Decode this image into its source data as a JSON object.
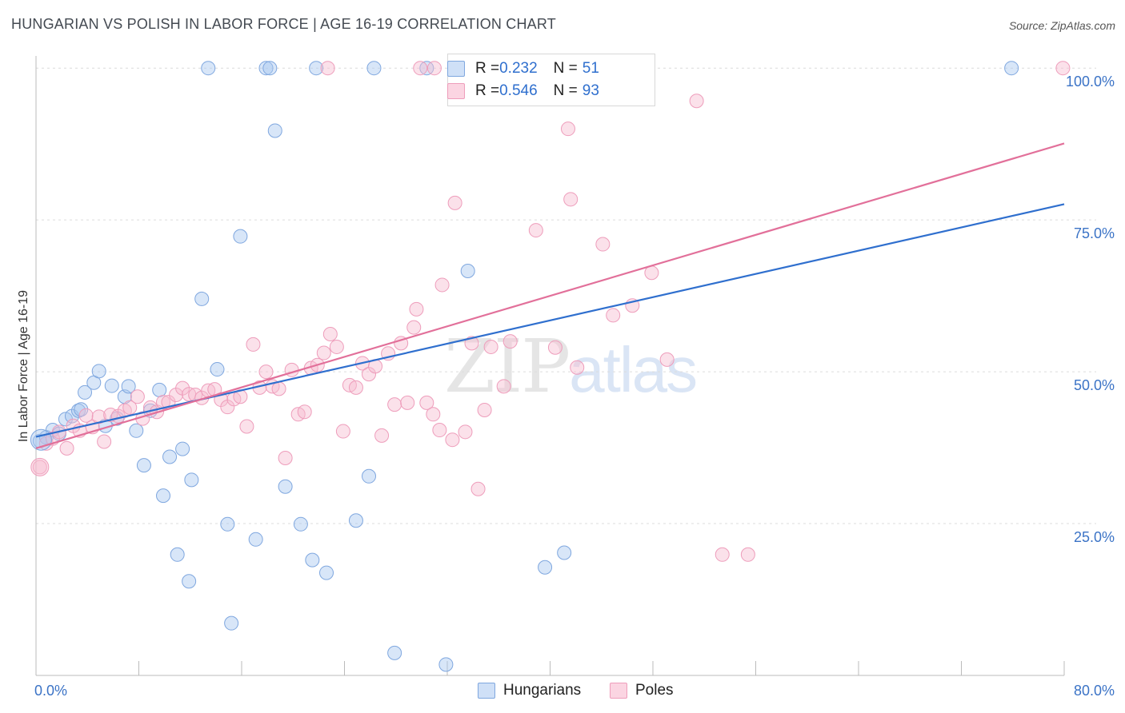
{
  "title": "HUNGARIAN VS POLISH IN LABOR FORCE | AGE 16-19 CORRELATION CHART",
  "source": "Source: ZipAtlas.com",
  "watermark": {
    "zip": "ZIP",
    "atlas": "atlas"
  },
  "legend": {
    "rows": [
      {
        "r_label": "R = ",
        "r_value": "0.232",
        "n_label": "N = ",
        "n_value": "51",
        "color": "#a9c7f0"
      },
      {
        "r_label": "R = ",
        "r_value": "0.546",
        "n_label": "N = ",
        "n_value": "93",
        "color": "#f7bcd0"
      }
    ]
  },
  "bottom_legend": [
    "Hungarians",
    "Poles"
  ],
  "chart_data": {
    "type": "scatter",
    "title": "HUNGARIAN VS POLISH IN LABOR FORCE | AGE 16-19 CORRELATION CHART",
    "xlabel": "",
    "ylabel": "In Labor Force | Age 16-19",
    "xlim": [
      0,
      80
    ],
    "ylim": [
      0,
      102
    ],
    "x_tick_labels": [
      "0.0%",
      "80.0%"
    ],
    "y_ticks": [
      25,
      50,
      75,
      100
    ],
    "y_tick_labels": [
      "25.0%",
      "50.0%",
      "75.0%",
      "100.0%"
    ],
    "grid": true,
    "colors": {
      "hungarians": "#a9c7f0",
      "hungarians_line": "#2f6fce",
      "poles": "#f7bcd0",
      "poles_line": "#e2709a"
    },
    "series": [
      {
        "name": "Hungarians",
        "trend": [
          [
            0,
            39.3
          ],
          [
            80,
            77.6
          ]
        ],
        "points": [
          [
            0.3,
            38.6
          ],
          [
            0.8,
            39.2
          ],
          [
            1.3,
            40.4
          ],
          [
            1.8,
            39.8
          ],
          [
            2.3,
            42.2
          ],
          [
            2.8,
            42.7
          ],
          [
            3.3,
            43.6
          ],
          [
            3.5,
            43.8
          ],
          [
            3.8,
            46.6
          ],
          [
            4.5,
            48.2
          ],
          [
            4.9,
            50.1
          ],
          [
            5.4,
            41.1
          ],
          [
            5.9,
            47.7
          ],
          [
            6.3,
            42.3
          ],
          [
            6.9,
            45.9
          ],
          [
            7.2,
            47.6
          ],
          [
            7.8,
            40.3
          ],
          [
            8.4,
            34.6
          ],
          [
            8.9,
            43.6
          ],
          [
            9.6,
            47.0
          ],
          [
            9.9,
            29.6
          ],
          [
            10.4,
            36.0
          ],
          [
            11.0,
            19.9
          ],
          [
            11.4,
            37.3
          ],
          [
            11.9,
            15.5
          ],
          [
            12.1,
            32.2
          ],
          [
            12.9,
            62.0
          ],
          [
            13.4,
            100.0
          ],
          [
            14.1,
            50.4
          ],
          [
            14.9,
            24.9
          ],
          [
            15.2,
            8.6
          ],
          [
            15.9,
            72.3
          ],
          [
            17.1,
            22.4
          ],
          [
            17.9,
            100.0
          ],
          [
            18.2,
            100.0
          ],
          [
            18.6,
            89.7
          ],
          [
            19.4,
            31.1
          ],
          [
            20.6,
            24.9
          ],
          [
            21.5,
            19.0
          ],
          [
            22.6,
            16.9
          ],
          [
            21.8,
            100.0
          ],
          [
            24.9,
            25.5
          ],
          [
            25.9,
            32.8
          ],
          [
            26.3,
            100.0
          ],
          [
            27.9,
            3.7
          ],
          [
            30.4,
            100.0
          ],
          [
            31.9,
            1.8
          ],
          [
            33.6,
            66.6
          ],
          [
            39.6,
            17.8
          ],
          [
            41.1,
            20.2
          ],
          [
            75.9,
            100.0
          ]
        ]
      },
      {
        "name": "Poles",
        "trend": [
          [
            0,
            37.4
          ],
          [
            80,
            87.6
          ]
        ],
        "points": [
          [
            0.3,
            34.3
          ],
          [
            0.8,
            38.2
          ],
          [
            1.3,
            39.0
          ],
          [
            1.8,
            40.1
          ],
          [
            2.4,
            37.4
          ],
          [
            2.9,
            41.1
          ],
          [
            3.4,
            40.3
          ],
          [
            3.9,
            42.8
          ],
          [
            4.4,
            40.9
          ],
          [
            4.9,
            42.6
          ],
          [
            5.3,
            38.5
          ],
          [
            5.8,
            42.9
          ],
          [
            6.4,
            42.7
          ],
          [
            6.9,
            43.6
          ],
          [
            7.3,
            44.1
          ],
          [
            7.9,
            45.9
          ],
          [
            8.3,
            42.3
          ],
          [
            8.9,
            44.1
          ],
          [
            9.4,
            43.4
          ],
          [
            9.9,
            45.0
          ],
          [
            10.3,
            45.0
          ],
          [
            10.9,
            46.2
          ],
          [
            11.4,
            47.3
          ],
          [
            11.9,
            46.3
          ],
          [
            12.4,
            46.2
          ],
          [
            12.9,
            45.7
          ],
          [
            13.4,
            46.9
          ],
          [
            13.9,
            47.1
          ],
          [
            14.4,
            45.4
          ],
          [
            14.9,
            44.2
          ],
          [
            15.4,
            45.5
          ],
          [
            15.9,
            45.9
          ],
          [
            16.4,
            41.0
          ],
          [
            16.9,
            54.5
          ],
          [
            17.4,
            47.4
          ],
          [
            17.9,
            50.0
          ],
          [
            18.4,
            47.6
          ],
          [
            18.9,
            47.2
          ],
          [
            19.4,
            35.8
          ],
          [
            19.9,
            50.3
          ],
          [
            20.4,
            43.0
          ],
          [
            20.9,
            43.4
          ],
          [
            21.4,
            50.6
          ],
          [
            21.9,
            51.1
          ],
          [
            22.4,
            53.1
          ],
          [
            22.9,
            56.2
          ],
          [
            23.4,
            54.1
          ],
          [
            23.9,
            40.2
          ],
          [
            24.4,
            47.8
          ],
          [
            24.9,
            47.4
          ],
          [
            25.4,
            51.4
          ],
          [
            25.9,
            49.6
          ],
          [
            26.4,
            50.9
          ],
          [
            26.9,
            39.5
          ],
          [
            27.4,
            53.0
          ],
          [
            27.9,
            44.6
          ],
          [
            28.4,
            54.7
          ],
          [
            28.9,
            44.9
          ],
          [
            29.4,
            57.3
          ],
          [
            29.6,
            60.3
          ],
          [
            30.4,
            44.9
          ],
          [
            30.9,
            43.0
          ],
          [
            31.4,
            40.4
          ],
          [
            31.6,
            64.3
          ],
          [
            32.4,
            38.8
          ],
          [
            32.6,
            77.8
          ],
          [
            33.4,
            40.1
          ],
          [
            33.9,
            54.7
          ],
          [
            34.4,
            30.7
          ],
          [
            34.9,
            43.7
          ],
          [
            35.4,
            54.1
          ],
          [
            35.9,
            100.0
          ],
          [
            36.4,
            47.6
          ],
          [
            36.9,
            55.0
          ],
          [
            37.4,
            100.0
          ],
          [
            38.9,
            73.3
          ],
          [
            40.4,
            54.0
          ],
          [
            41.4,
            90.0
          ],
          [
            41.6,
            78.4
          ],
          [
            42.1,
            50.7
          ],
          [
            44.1,
            71.0
          ],
          [
            44.9,
            59.3
          ],
          [
            46.4,
            60.9
          ],
          [
            47.9,
            66.3
          ],
          [
            49.1,
            52.0
          ],
          [
            51.4,
            94.6
          ],
          [
            53.4,
            19.9
          ],
          [
            55.4,
            19.9
          ],
          [
            79.9,
            100.0
          ],
          [
            29.9,
            100.0
          ],
          [
            35.5,
            100.0
          ],
          [
            31.0,
            100.0
          ],
          [
            22.7,
            100.0
          ]
        ]
      }
    ]
  }
}
